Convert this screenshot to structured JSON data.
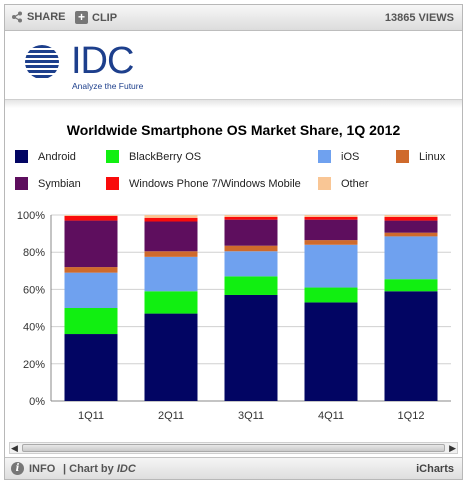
{
  "toolbar": {
    "share_label": "SHARE",
    "clip_label": "CLIP",
    "views_label": "13865 VIEWS"
  },
  "logo": {
    "name": "IDC",
    "tagline": "Analyze the Future",
    "color": "#1d3f8c"
  },
  "scrollbar": {
    "left_arrow": "◀",
    "right_arrow": "▶"
  },
  "footer": {
    "info_label": "INFO",
    "chart_by_label": "| Chart by",
    "chart_by_brand": "IDC",
    "provider": "iCharts"
  },
  "chart_data": {
    "type": "bar",
    "stacked": true,
    "title": "Worldwide Smartphone OS Market Share, 1Q 2012",
    "categories": [
      "1Q11",
      "2Q11",
      "3Q11",
      "4Q11",
      "1Q12"
    ],
    "ylim": [
      0,
      100
    ],
    "y_ticks": [
      0,
      20,
      40,
      60,
      80,
      100
    ],
    "y_tick_labels": [
      "0%",
      "20%",
      "40%",
      "60%",
      "80%",
      "100%"
    ],
    "grid": true,
    "legend_position": "top",
    "series": [
      {
        "name": "Android",
        "color": "#020563",
        "values": [
          36,
          47,
          57,
          53,
          59
        ]
      },
      {
        "name": "BlackBerry OS",
        "color": "#11ef11",
        "values": [
          14,
          12,
          10,
          8,
          6.5
        ]
      },
      {
        "name": "iOS",
        "color": "#6fa1ef",
        "values": [
          19,
          18.5,
          13.5,
          23,
          23
        ]
      },
      {
        "name": "Linux",
        "color": "#cf6a2c",
        "values": [
          3,
          3,
          3,
          2.5,
          2
        ]
      },
      {
        "name": "Symbian",
        "color": "#5e0e5e",
        "values": [
          25,
          16,
          14,
          11,
          6.5
        ]
      },
      {
        "name": "Windows Phone 7/Windows Mobile",
        "color": "#f90b0b",
        "values": [
          2.5,
          2,
          1.5,
          1.5,
          2
        ]
      },
      {
        "name": "Other",
        "color": "#f9c695",
        "values": [
          0.5,
          1.5,
          1,
          1,
          1
        ]
      }
    ]
  }
}
